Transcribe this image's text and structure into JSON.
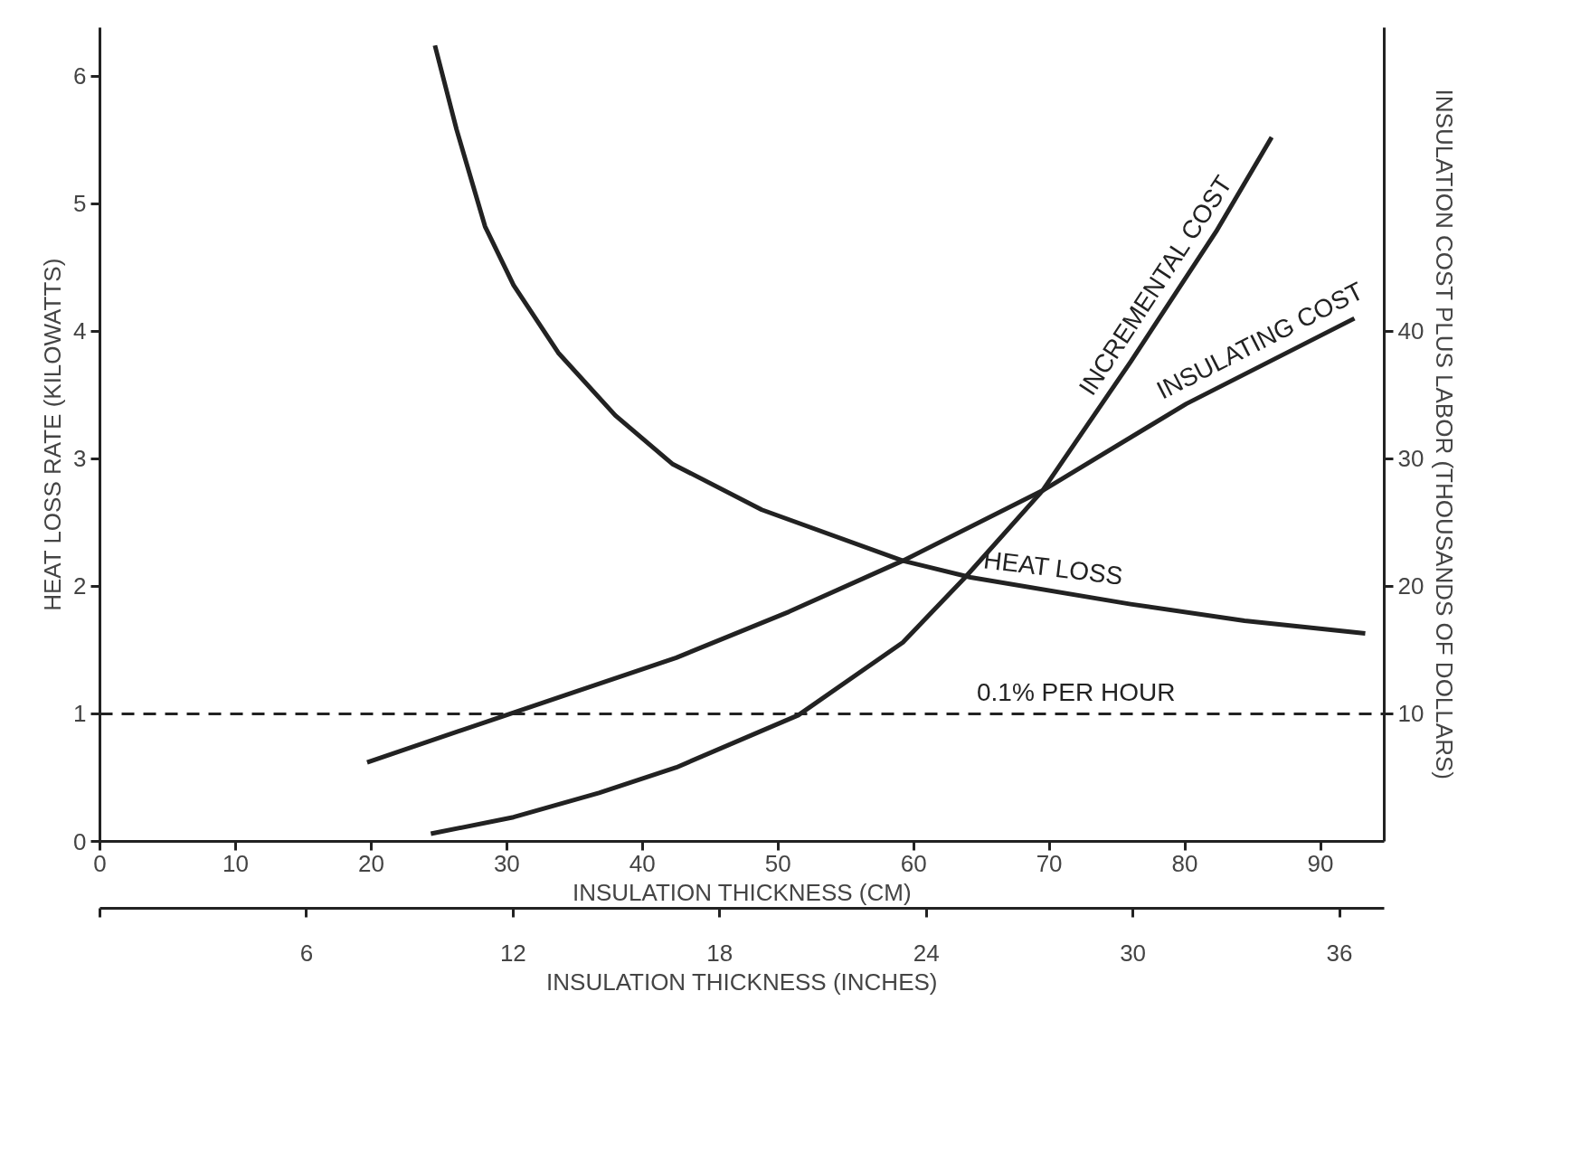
{
  "chart_data": {
    "type": "line",
    "xlabel": "INSULATION THICKNESS (CM)",
    "ylabel": "HEAT LOSS RATE (KILOWATTS)",
    "y2label": "INSULATION COST PLUS LABOR (THOUSANDS OF DOLLARS)",
    "x2label": "INSULATION THICKNESS (INCHES)",
    "xlim": [
      0,
      94.7
    ],
    "xticks": [
      0,
      10,
      20,
      30,
      40,
      50,
      60,
      70,
      80,
      90
    ],
    "ylim": [
      0,
      6.38
    ],
    "yticks": [
      0,
      1,
      2,
      3,
      4,
      5,
      6
    ],
    "y2lim": [
      0,
      63.8
    ],
    "y2ticks": [
      10,
      20,
      30,
      40
    ],
    "x2lim": [
      0,
      37.3
    ],
    "x2ticks": [
      {
        "value": 0,
        "label": null
      },
      6,
      12,
      18,
      24,
      30,
      36
    ],
    "grid": false,
    "line_style": "solid",
    "series": [
      {
        "name": "HEAT LOSS",
        "color": "#222222",
        "x": [
          24.7,
          26.3,
          28.4,
          30.5,
          33.8,
          38.0,
          42.2,
          48.8,
          59.2,
          64.2,
          76.0,
          84.4,
          93.3
        ],
        "values": [
          6.24,
          5.58,
          4.82,
          4.36,
          3.83,
          3.34,
          2.96,
          2.6,
          2.2,
          2.07,
          1.86,
          1.73,
          1.63
        ]
      },
      {
        "name": "INSULATING COST",
        "color": "#222222",
        "axis": "y2",
        "x": [
          19.7,
          30.5,
          42.5,
          50.8,
          59.2,
          69.5,
          80.1,
          92.5
        ],
        "values": [
          6.2,
          10.1,
          14.4,
          18.0,
          22.0,
          27.5,
          34.3,
          41.0
        ]
      },
      {
        "name": "INCREMENTAL COST",
        "color": "#222222",
        "axis": "y2",
        "x": [
          24.4,
          30.5,
          36.8,
          42.5,
          51.5,
          59.2,
          63.8,
          69.5,
          76.0,
          82.3,
          86.4
        ],
        "values": [
          0.6,
          1.9,
          3.8,
          5.8,
          9.9,
          15.6,
          20.7,
          27.5,
          37.6,
          47.8,
          55.2
        ]
      }
    ],
    "ref_lines": [
      {
        "axis": "y",
        "value": 1,
        "label": "0.1% PER HOUR",
        "line_style": "dashed",
        "color": "#222222"
      }
    ]
  }
}
